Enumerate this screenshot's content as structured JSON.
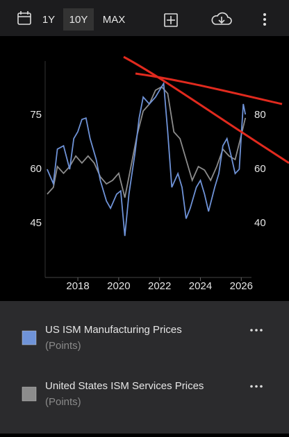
{
  "toolbar": {
    "ranges": [
      "1Y",
      "10Y",
      "MAX"
    ],
    "selected": 1
  },
  "chart_data": {
    "type": "line",
    "xlim": [
      2016.4,
      2026.5
    ],
    "xticks": [
      2018,
      2020,
      2022,
      2024,
      2026
    ],
    "ylim": [
      30,
      90
    ],
    "yticks": [
      45,
      60,
      75
    ],
    "y2lim": [
      20,
      100
    ],
    "y2ticks": [
      40,
      60,
      80
    ],
    "series": [
      {
        "name": "US ISM Manufacturing Prices",
        "unit": "(Points)",
        "color": "#6f93d8",
        "x": [
          2016.5,
          2016.8,
          2017.0,
          2017.3,
          2017.6,
          2017.8,
          2018.0,
          2018.2,
          2018.4,
          2018.6,
          2018.9,
          2019.1,
          2019.4,
          2019.6,
          2019.9,
          2020.1,
          2020.3,
          2020.5,
          2020.8,
          2021.0,
          2021.2,
          2021.5,
          2021.8,
          2022.0,
          2022.2,
          2022.4,
          2022.6,
          2022.9,
          2023.1,
          2023.3,
          2023.5,
          2023.8,
          2024.0,
          2024.2,
          2024.4,
          2024.7,
          2024.9,
          2025.1,
          2025.3,
          2025.5,
          2025.7,
          2025.9,
          2026.0,
          2026.1,
          2026.2
        ],
        "values": [
          60,
          56,
          65.6,
          66.5,
          60,
          68.5,
          70.4,
          73.8,
          74.2,
          68.5,
          62.7,
          56.9,
          51.2,
          49.2,
          53.1,
          54,
          41.5,
          53.1,
          64.6,
          74.2,
          80,
          78.1,
          80,
          81.9,
          83.8,
          70.4,
          55,
          58.8,
          55,
          46.3,
          49.2,
          55,
          56.9,
          53.1,
          48.3,
          55,
          58.8,
          66.5,
          68.5,
          63.8,
          58.8,
          60,
          69.4,
          78.1,
          75.2
        ]
      },
      {
        "name": "United States ISM Services Prices",
        "unit": "(Points)",
        "color": "#8c8c8c",
        "axis": "y2",
        "x": [
          2016.5,
          2016.8,
          2017.0,
          2017.3,
          2017.6,
          2017.9,
          2018.2,
          2018.5,
          2018.8,
          2019.1,
          2019.4,
          2019.7,
          2020.0,
          2020.3,
          2020.6,
          2020.9,
          2021.2,
          2021.5,
          2021.8,
          2022.1,
          2022.4,
          2022.7,
          2023.0,
          2023.3,
          2023.6,
          2023.9,
          2024.2,
          2024.5,
          2024.8,
          2025.1,
          2025.4,
          2025.7,
          2026.0,
          2026.2
        ],
        "values": [
          50.8,
          53.3,
          61,
          58.5,
          61,
          64.9,
          62.3,
          64.9,
          62.3,
          57.2,
          54.6,
          55.9,
          58.5,
          49.5,
          61,
          72.6,
          81.5,
          84.1,
          89.2,
          90.5,
          88,
          73.8,
          71.3,
          63.6,
          55.9,
          61,
          59.7,
          55.9,
          61,
          67.4,
          64.9,
          63.6,
          72.6,
          79
        ]
      }
    ]
  }
}
